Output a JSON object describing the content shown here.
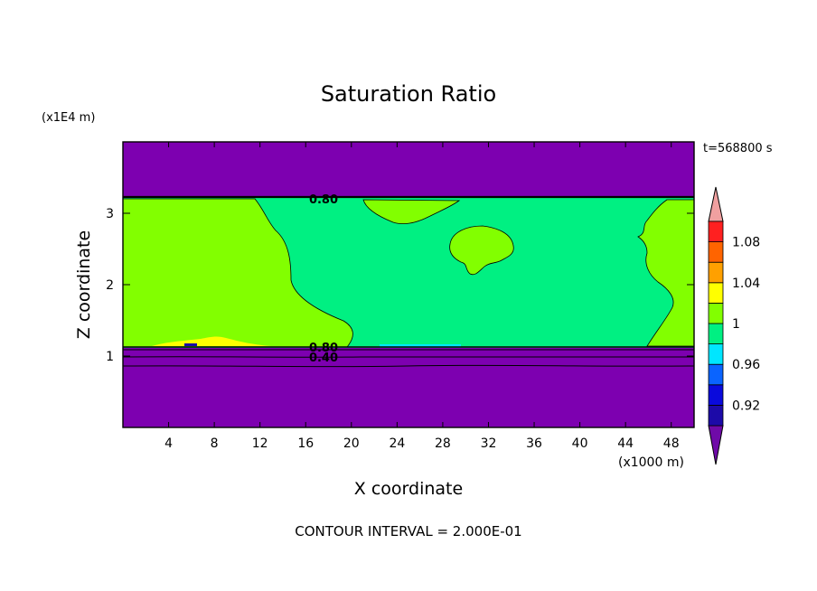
{
  "chart_data": {
    "type": "heatmap",
    "title": "Saturation Ratio",
    "xlabel": "X coordinate",
    "ylabel": "Z coordinate",
    "x_unit": "(x1000 m)",
    "y_unit": "(x1E4 m)",
    "time_label": "t=568800 s",
    "footer": "CONTOUR INTERVAL = 2.000E-01",
    "xlim": [
      0,
      50
    ],
    "ylim": [
      0,
      4
    ],
    "x_ticks": [
      4,
      8,
      12,
      16,
      20,
      24,
      28,
      32,
      36,
      40,
      44,
      48
    ],
    "y_ticks": [
      1,
      2,
      3
    ],
    "contour_labels": [
      "0.80",
      "0.80",
      "0.40"
    ],
    "colorbar": {
      "labels": [
        "1.08",
        "1.04",
        "1",
        "0.96",
        "0.92"
      ],
      "levels": [
        0.9,
        0.92,
        0.94,
        0.96,
        0.98,
        1.0,
        1.02,
        1.04,
        1.06,
        1.08,
        1.1
      ],
      "colors": [
        "#6f0aa8",
        "#1c0aa8",
        "#0a0adc",
        "#0a64ff",
        "#00e6ff",
        "#00f082",
        "#82ff00",
        "#ffff00",
        "#ffa000",
        "#ff6400",
        "#ff2020",
        "#f0a0a0"
      ]
    },
    "colors": {
      "subsaturated": "#7d00b0",
      "near_saturation": "#00f082",
      "slightly_supersaturated": "#82ff00",
      "supersaturated": "#ffff00",
      "just_below": "#00e6ff"
    }
  }
}
